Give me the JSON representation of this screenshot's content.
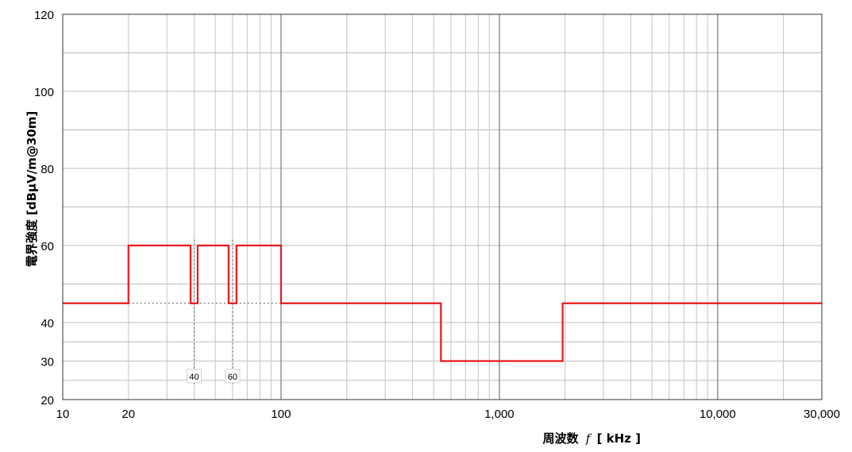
{
  "chart_data": {
    "type": "line",
    "x_scale": "log",
    "xlim": [
      10,
      30000
    ],
    "ylim": [
      20,
      120
    ],
    "xlabel_prefix": "周波数",
    "xlabel_var": "f",
    "xlabel_unit": "[ kHz ]",
    "ylabel": "電界強度 [dBµV/m@30m]",
    "x_ticks": [
      {
        "value": 10,
        "label": "10"
      },
      {
        "value": 20,
        "label": "20"
      },
      {
        "value": 100,
        "label": "100"
      },
      {
        "value": 1000,
        "label": "1,000"
      },
      {
        "value": 10000,
        "label": "10,000"
      },
      {
        "value": 30000,
        "label": "30,000"
      }
    ],
    "y_ticks": [
      {
        "value": 20,
        "label": "20"
      },
      {
        "value": 30,
        "label": "30"
      },
      {
        "value": 40,
        "label": "40"
      },
      {
        "value": 60,
        "label": "60"
      },
      {
        "value": 80,
        "label": "80"
      },
      {
        "value": 100,
        "label": "100"
      },
      {
        "value": 120,
        "label": "120"
      }
    ],
    "y_grid": [
      20,
      25,
      30,
      35,
      40,
      50,
      60,
      70,
      80,
      90,
      100,
      110,
      120
    ],
    "x_grid": [
      10,
      20,
      30,
      40,
      50,
      60,
      70,
      80,
      90,
      100,
      200,
      300,
      400,
      500,
      600,
      700,
      800,
      900,
      1000,
      2000,
      3000,
      4000,
      5000,
      6000,
      7000,
      8000,
      9000,
      10000,
      20000,
      30000
    ],
    "x_major": [
      100,
      1000,
      10000
    ],
    "grid": true,
    "series": [
      {
        "color": "#e8191e",
        "points": [
          [
            10,
            45
          ],
          [
            20,
            45
          ],
          [
            20,
            60
          ],
          [
            38.5,
            60
          ],
          [
            38.5,
            45
          ],
          [
            41.5,
            45
          ],
          [
            41.5,
            60
          ],
          [
            57.5,
            60
          ],
          [
            57.5,
            45
          ],
          [
            62.5,
            45
          ],
          [
            62.5,
            60
          ],
          [
            100,
            60
          ],
          [
            100,
            45
          ],
          [
            540,
            45
          ],
          [
            540,
            30
          ],
          [
            1950,
            30
          ],
          [
            1950,
            45
          ],
          [
            30000,
            45
          ]
        ]
      }
    ],
    "reference_lines": {
      "color": "#555555",
      "horizontal": [
        {
          "y": 45,
          "x_from": 20,
          "x_to": 100
        }
      ],
      "vertical": [
        {
          "x": 40,
          "y_from": 24,
          "y_to": 62
        },
        {
          "x": 60,
          "y_from": 24,
          "y_to": 62
        }
      ]
    },
    "marker_labels": [
      {
        "x": 40,
        "y": 26,
        "label": "40"
      },
      {
        "x": 60,
        "y": 26,
        "label": "60"
      }
    ]
  }
}
